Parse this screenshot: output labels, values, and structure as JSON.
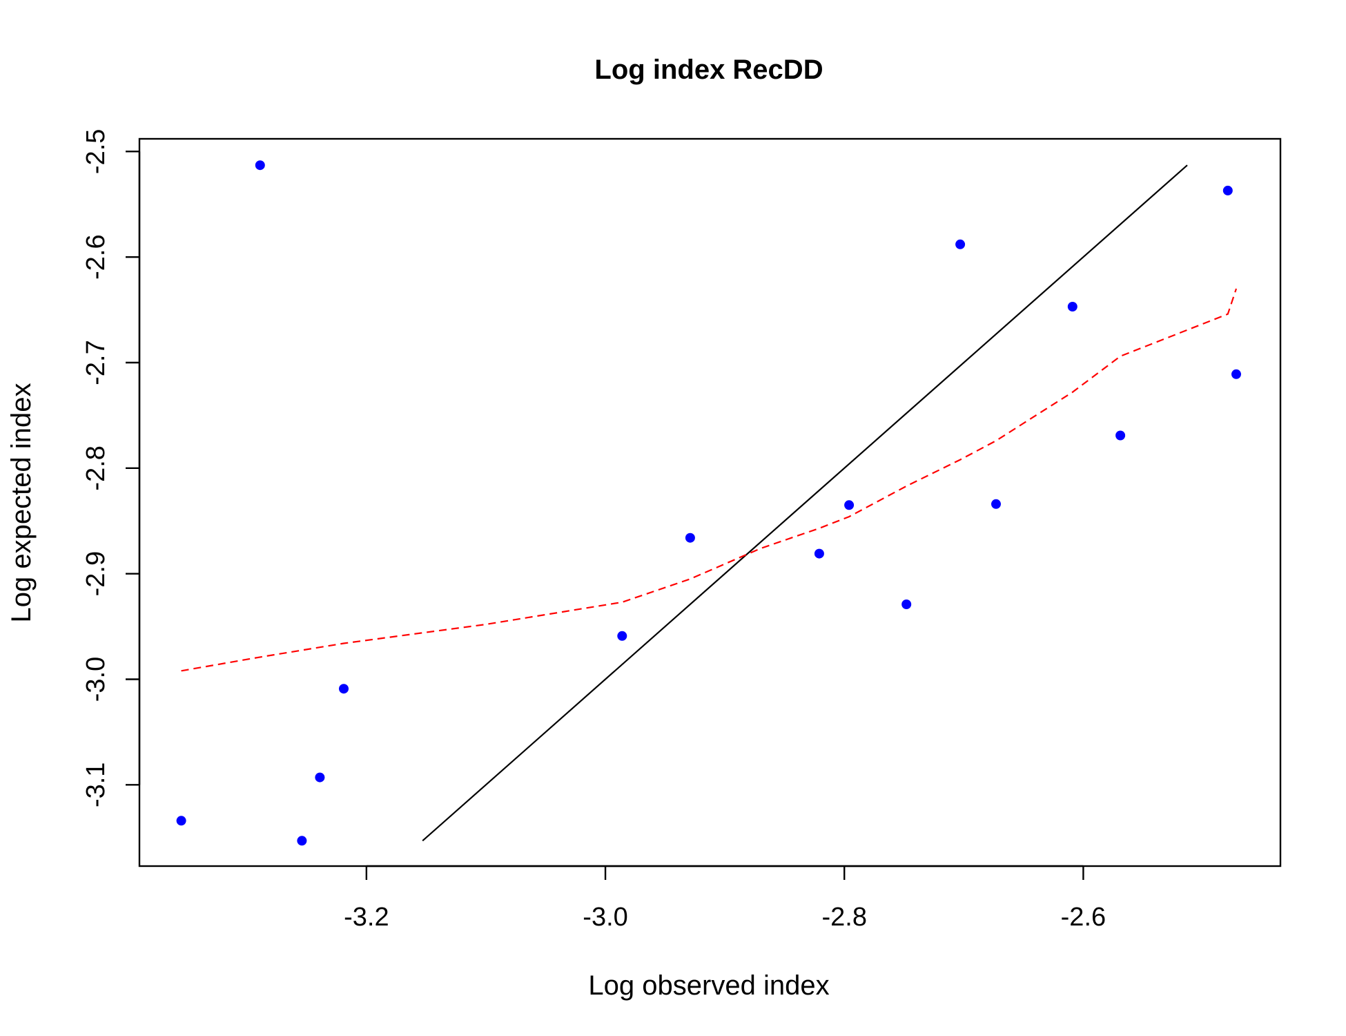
{
  "chart_data": {
    "type": "scatter",
    "title": "Log index RecDD",
    "xlabel": "Log observed index",
    "ylabel": "Log expected index",
    "xlim": [
      -3.39,
      -2.435
    ],
    "ylim": [
      -3.177,
      -2.488
    ],
    "x_ticks": [
      -3.2,
      -3.0,
      -2.8,
      -2.6
    ],
    "x_tick_labels": [
      "-3.2",
      "-3.0",
      "-2.8",
      "-2.6"
    ],
    "y_ticks": [
      -3.1,
      -3.0,
      -2.9,
      -2.8,
      -2.7,
      -2.6,
      -2.5
    ],
    "y_tick_labels": [
      "-3.1",
      "-3.0",
      "-2.9",
      "-2.8",
      "-2.7",
      "-2.6",
      "-2.5"
    ],
    "grid": false,
    "legend": null,
    "series": [
      {
        "kind": "points",
        "color": "#0000ff",
        "points": [
          {
            "x": -3.355,
            "y": -3.134
          },
          {
            "x": -3.289,
            "y": -2.513
          },
          {
            "x": -3.254,
            "y": -3.153
          },
          {
            "x": -3.239,
            "y": -3.093
          },
          {
            "x": -3.219,
            "y": -3.009
          },
          {
            "x": -2.986,
            "y": -2.959
          },
          {
            "x": -2.929,
            "y": -2.866
          },
          {
            "x": -2.821,
            "y": -2.881
          },
          {
            "x": -2.796,
            "y": -2.835
          },
          {
            "x": -2.748,
            "y": -2.929
          },
          {
            "x": -2.703,
            "y": -2.588
          },
          {
            "x": -2.673,
            "y": -2.834
          },
          {
            "x": -2.609,
            "y": -2.647
          },
          {
            "x": -2.569,
            "y": -2.769
          },
          {
            "x": -2.479,
            "y": -2.537
          },
          {
            "x": -2.472,
            "y": -2.711
          }
        ]
      },
      {
        "kind": "line",
        "style": "solid",
        "color": "#000000",
        "points": [
          {
            "x": -3.153,
            "y": -3.153
          },
          {
            "x": -2.513,
            "y": -2.513
          }
        ]
      },
      {
        "kind": "line",
        "style": "dashed",
        "color": "#ff0000",
        "points": [
          {
            "x": -3.355,
            "y": -2.992
          },
          {
            "x": -3.289,
            "y": -2.979
          },
          {
            "x": -3.219,
            "y": -2.966
          },
          {
            "x": -3.1,
            "y": -2.948
          },
          {
            "x": -2.986,
            "y": -2.927
          },
          {
            "x": -2.929,
            "y": -2.905
          },
          {
            "x": -2.87,
            "y": -2.876
          },
          {
            "x": -2.821,
            "y": -2.857
          },
          {
            "x": -2.796,
            "y": -2.846
          },
          {
            "x": -2.748,
            "y": -2.817
          },
          {
            "x": -2.703,
            "y": -2.792
          },
          {
            "x": -2.673,
            "y": -2.774
          },
          {
            "x": -2.609,
            "y": -2.728
          },
          {
            "x": -2.569,
            "y": -2.694
          },
          {
            "x": -2.479,
            "y": -2.654
          },
          {
            "x": -2.472,
            "y": -2.63
          }
        ]
      }
    ]
  }
}
